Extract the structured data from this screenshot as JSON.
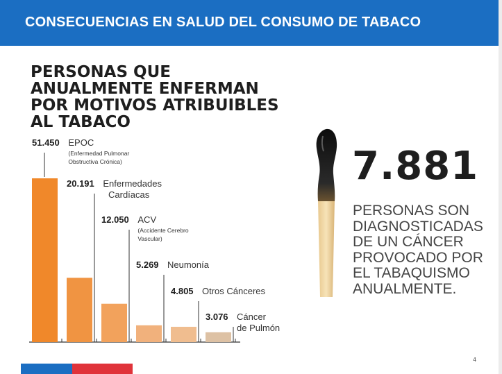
{
  "header": {
    "title": "CONSECUENCIAS EN SALUD DEL CONSUMO DE TABACO"
  },
  "main_title_lines": [
    "PERSONAS QUE",
    "ANUALMENTE ENFERMAN",
    "POR MOTIVOS ATRIBUIBLES",
    "AL TABACO"
  ],
  "chart_data": {
    "type": "bar",
    "categories": [
      "EPOC",
      "Enfermedades Cardíacas",
      "ACV",
      "Neumonía",
      "Otros Cánceres",
      "Cáncer de Pulmón"
    ],
    "values": [
      51450,
      20191,
      12050,
      5269,
      4805,
      3076
    ],
    "value_labels": [
      "51.450",
      "20.191",
      "12.050",
      "5.269",
      "4.805",
      "3.076"
    ],
    "label_lines": [
      [
        "EPOC"
      ],
      [
        "Enfermedades",
        "Cardíacas"
      ],
      [
        "ACV"
      ],
      [
        "Neumonía"
      ],
      [
        "Otros Cánceres"
      ],
      [
        "Cáncer",
        "de Pulmón"
      ]
    ],
    "sublabels": [
      [
        "(Enfermedad Pulmonar",
        "Obstructiva Crónica)"
      ],
      [],
      [
        "(Accidente Cerebro",
        "Vascular)"
      ],
      [],
      [],
      []
    ],
    "colors": [
      "#f0882a",
      "#f09442",
      "#f2a25c",
      "#f1b17c",
      "#f0bd8f",
      "#ddc1a4"
    ],
    "xlabel": "",
    "ylabel": ""
  },
  "highlight": {
    "number": "7.881",
    "text_lines": [
      "PERSONAS SON",
      "DIAGNOSTICADAS",
      "DE UN CÁNCER",
      "PROVOCADO POR",
      "EL TABAQUISMO",
      "ANUALMENTE."
    ]
  },
  "page_number": "4",
  "icons": [
    "burnt-match-icon"
  ]
}
